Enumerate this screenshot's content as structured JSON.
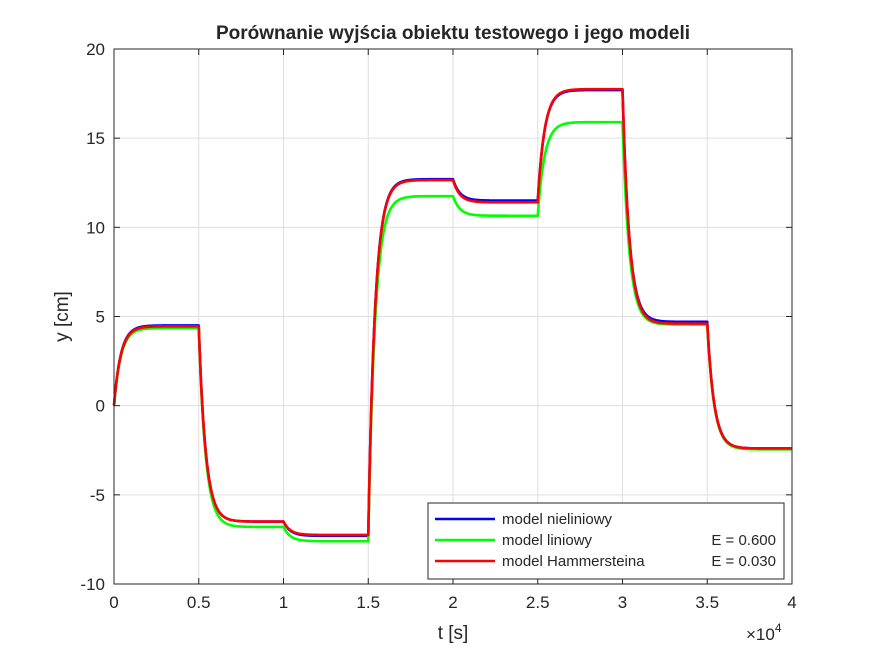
{
  "chart_data": {
    "type": "line",
    "title": "Porównanie wyjścia obiektu testowego i jego modeli",
    "xlabel": "t [s]",
    "ylabel": "y [cm]",
    "xlim": [
      0,
      40000
    ],
    "ylim": [
      -10,
      20
    ],
    "x_ticks": [
      0,
      5000,
      10000,
      15000,
      20000,
      25000,
      30000,
      35000,
      40000
    ],
    "x_tick_labels": [
      "0",
      "0.5",
      "1",
      "1.5",
      "2",
      "2.5",
      "3",
      "3.5",
      "4"
    ],
    "x_exponent_label": "×10",
    "x_exponent_power": "4",
    "y_ticks": [
      -10,
      -5,
      0,
      5,
      10,
      15,
      20
    ],
    "y_tick_labels": [
      "-10",
      "-5",
      "0",
      "5",
      "10",
      "15",
      "20"
    ],
    "grid": true,
    "legend_position": "bottom-right",
    "x": [
      0,
      5000,
      10000,
      15000,
      20000,
      25000,
      30000,
      35000,
      40000
    ],
    "series": [
      {
        "name": "model nieliniowy",
        "error_label": "",
        "color": "#0000ff",
        "step_levels": [
          4.5,
          -6.5,
          -7.3,
          12.7,
          11.5,
          17.7,
          4.7,
          -2.4
        ],
        "time_constant": 400
      },
      {
        "name": "model liniowy",
        "error_label": "E = 0.600",
        "color": "#00ff00",
        "step_levels": [
          4.35,
          -6.8,
          -7.6,
          11.75,
          10.65,
          15.9,
          4.55,
          -2.45
        ],
        "time_constant": 400
      },
      {
        "name": "model Hammersteina",
        "error_label": "E = 0.030",
        "color": "#ff0000",
        "step_levels": [
          4.45,
          -6.5,
          -7.25,
          12.65,
          11.4,
          17.75,
          4.6,
          -2.4
        ],
        "time_constant": 400
      }
    ]
  }
}
